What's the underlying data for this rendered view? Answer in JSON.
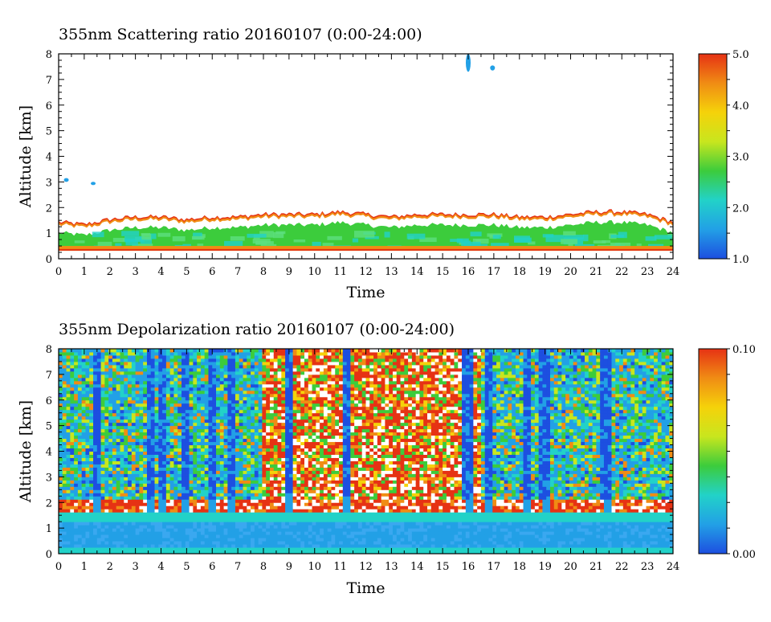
{
  "chart_data": [
    {
      "type": "heatmap",
      "title": "355nm Scattering ratio  20160107 (0:00-24:00)",
      "xlabel": "Time",
      "ylabel": "Altitude [km]",
      "xlim": [
        0,
        24
      ],
      "ylim": [
        0,
        8
      ],
      "xticks": [
        "0",
        "1",
        "2",
        "3",
        "4",
        "5",
        "6",
        "7",
        "8",
        "9",
        "10",
        "11",
        "12",
        "13",
        "14",
        "15",
        "16",
        "17",
        "18",
        "19",
        "20",
        "21",
        "22",
        "23",
        "24"
      ],
      "yticks": [
        "0",
        "1",
        "2",
        "3",
        "4",
        "5",
        "6",
        "7",
        "8"
      ],
      "colorbar": {
        "range": [
          1.0,
          5.0
        ],
        "labels": [
          "1.0",
          "2.0",
          "3.0",
          "4.0",
          "5.0"
        ],
        "colors": [
          "#1d4fe0",
          "#22a0e6",
          "#22d2c8",
          "#3ccc3c",
          "#c8e61e",
          "#f5d20a",
          "#f08c14",
          "#e63214"
        ]
      },
      "features": {
        "aerosol_layer_top_km": [
          1.4,
          1.3,
          1.5,
          1.6,
          1.6,
          1.5,
          1.6,
          1.6,
          1.7,
          1.7,
          1.7,
          1.8,
          1.7,
          1.6,
          1.7,
          1.7,
          1.7,
          1.7,
          1.6,
          1.6,
          1.7,
          1.8,
          1.8,
          1.7,
          1.4
        ],
        "surface_band_km": [
          0.3,
          0.5
        ],
        "isolated_echoes": [
          {
            "t": 16.0,
            "alt": [
              7.3,
              8.0
            ]
          },
          {
            "t": 16.95,
            "alt": [
              7.35,
              7.55
            ]
          },
          {
            "t": 0.3,
            "alt": [
              3.0,
              3.15
            ]
          },
          {
            "t": 1.35,
            "alt": [
              2.88,
              3.0
            ]
          }
        ]
      }
    },
    {
      "type": "heatmap",
      "title": "355nm Depolarization ratio  20160107 (0:00-24:00)",
      "xlabel": "Time",
      "ylabel": "Altitude [km]",
      "xlim": [
        0,
        24
      ],
      "ylim": [
        0,
        8
      ],
      "xticks": [
        "0",
        "1",
        "2",
        "3",
        "4",
        "5",
        "6",
        "7",
        "8",
        "9",
        "10",
        "11",
        "12",
        "13",
        "14",
        "15",
        "16",
        "17",
        "18",
        "19",
        "20",
        "21",
        "22",
        "23",
        "24"
      ],
      "yticks": [
        "0",
        "1",
        "2",
        "3",
        "4",
        "5",
        "6",
        "7",
        "8"
      ],
      "colorbar": {
        "range": [
          0.0,
          0.1
        ],
        "labels": [
          "0.00",
          "0.10"
        ],
        "colors": [
          "#1d4fe0",
          "#22a0e6",
          "#22d2c8",
          "#3ccc3c",
          "#c8e61e",
          "#f5d20a",
          "#f08c14",
          "#e63214"
        ]
      },
      "features": {
        "low_depol_columns_h": [
          1.5,
          3.6,
          4.0,
          5.0,
          6.0,
          6.7,
          9.0,
          11.2,
          16.0,
          16.8,
          18.3,
          19.0,
          21.4
        ],
        "high_depol_period_h": [
          8.0,
          16.5
        ],
        "layer_top_km": 2.0
      }
    }
  ]
}
